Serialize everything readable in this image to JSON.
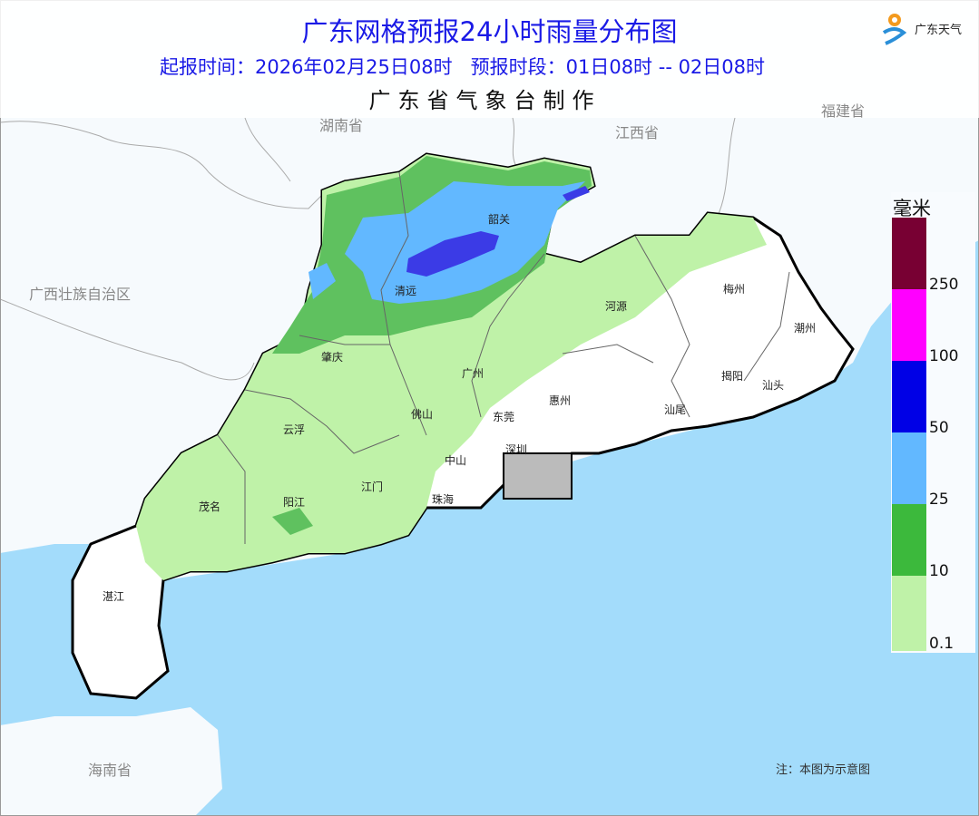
{
  "header": {
    "title": "广东网格预报24小时雨量分布图",
    "subtitle": "起报时间：2026年02月25日08时   预报时段：01日08时 -- 02日08时",
    "producer": "广东省气象台制作",
    "logo_text": "广东天气"
  },
  "regions": [
    "湖南省",
    "江西省",
    "福建省",
    "广西壮族自治区",
    "海南省"
  ],
  "cities": [
    "韶关",
    "清远",
    "河源",
    "梅州",
    "潮州",
    "肇庆",
    "广州",
    "揭阳",
    "汕头",
    "惠州",
    "汕尾",
    "云浮",
    "佛山",
    "东莞",
    "深圳",
    "中山",
    "江门",
    "茂名",
    "阳江",
    "珠海",
    "湛江"
  ],
  "legend": {
    "unit": "毫米",
    "bands": [
      {
        "label": "250",
        "color": "#780033"
      },
      {
        "label": "100",
        "color": "#ff00ff"
      },
      {
        "label": "50",
        "color": "#0000e6"
      },
      {
        "label": "25",
        "color": "#62b8ff"
      },
      {
        "label": "10",
        "color": "#3cb93c"
      },
      {
        "label": "0.1",
        "color": "#bff2a8"
      }
    ]
  },
  "colors": {
    "sea": "#a3dcfb",
    "land_no_rain": "#ffffff",
    "outside_land": "#f6fafd"
  },
  "note": "注：本图为示意图"
}
